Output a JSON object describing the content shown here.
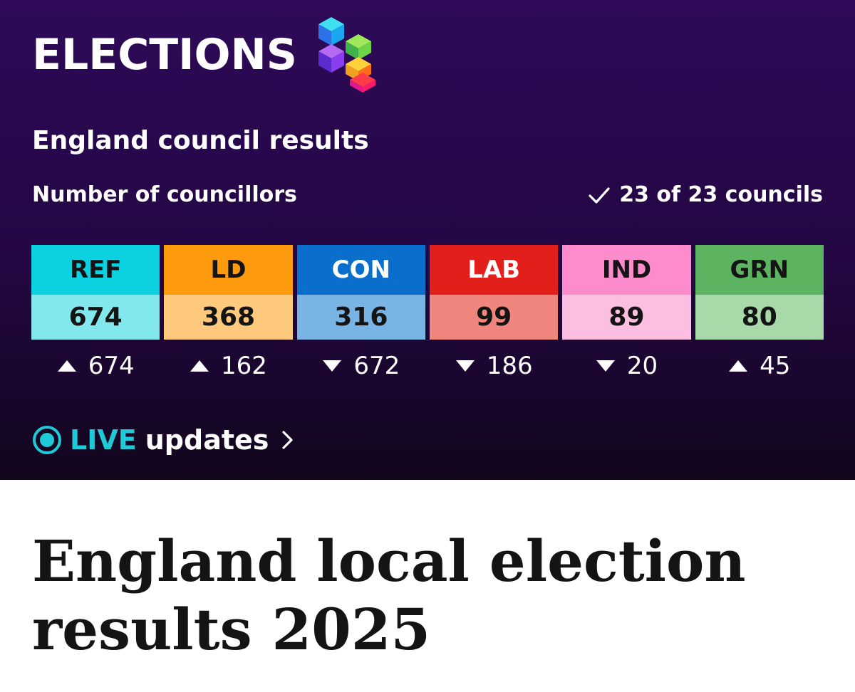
{
  "banner": {
    "brand_title": "ELECTIONS",
    "section_title": "England council results",
    "sub_label": "Number of councillors",
    "councils_text": "23 of 23 councils",
    "parties": [
      {
        "abbr": "REF",
        "seats": "674",
        "change": "674",
        "direction": "up",
        "header_color": "#0bd1e1",
        "seats_color": "#83e8ee",
        "abbr_text_color": "#141414"
      },
      {
        "abbr": "LD",
        "seats": "368",
        "change": "162",
        "direction": "up",
        "header_color": "#fd9a0e",
        "seats_color": "#fec87d",
        "abbr_text_color": "#141414"
      },
      {
        "abbr": "CON",
        "seats": "316",
        "change": "672",
        "direction": "down",
        "header_color": "#0a6fcc",
        "seats_color": "#78b4e4",
        "abbr_text_color": "#ffffff"
      },
      {
        "abbr": "LAB",
        "seats": "99",
        "change": "186",
        "direction": "down",
        "header_color": "#e31f1c",
        "seats_color": "#f0857d",
        "abbr_text_color": "#ffffff"
      },
      {
        "abbr": "IND",
        "seats": "89",
        "change": "20",
        "direction": "down",
        "header_color": "#fe8ccc",
        "seats_color": "#fdbfe1",
        "abbr_text_color": "#141414"
      },
      {
        "abbr": "GRN",
        "seats": "80",
        "change": "45",
        "direction": "up",
        "header_color": "#5cb460",
        "seats_color": "#a7daa8",
        "abbr_text_color": "#141414"
      }
    ],
    "live": {
      "live_label": "LIVE",
      "updates_label": "updates"
    }
  },
  "headline": "England local election results 2025",
  "icons": {
    "logo": "elections-cubes-logo",
    "check": "check-icon",
    "live": "live-icon",
    "chevron": "chevron-right-icon",
    "arrow_up": "arrow-up-icon",
    "arrow_down": "arrow-down-icon"
  },
  "colors": {
    "banner_top": "#2e0a58",
    "banner_bottom": "#12061c",
    "live_accent": "#1fc9d6"
  }
}
